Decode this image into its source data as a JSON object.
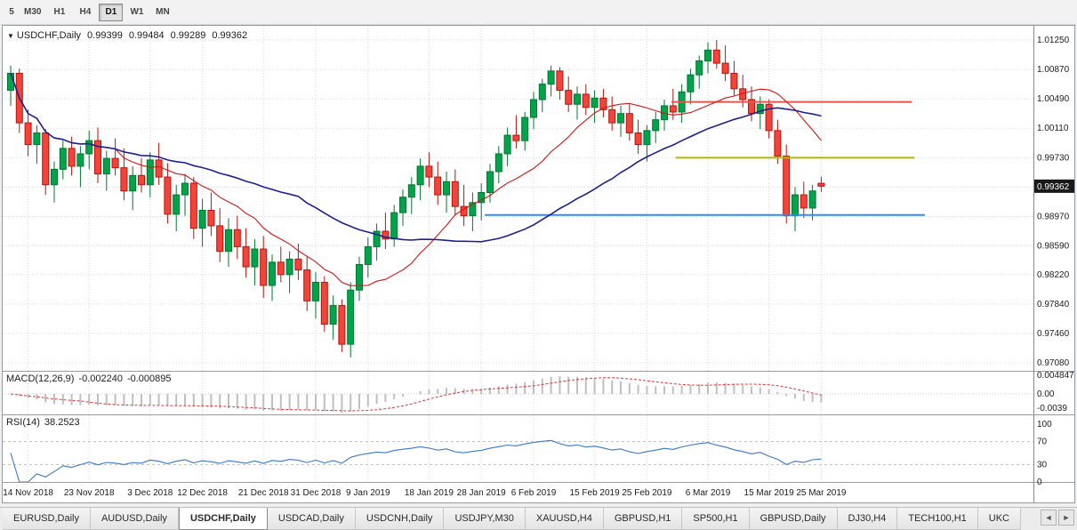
{
  "accent_colors": {
    "up": "#00a44a",
    "up_border": "#00762f",
    "down": "#f5433a",
    "down_border": "#b3150e",
    "ma_fast": "#d01616",
    "ma_slow": "#1c1f8f",
    "hline_red": "#e2574c",
    "hline_yellow": "#b4b800",
    "hline_blue": "#2e8ef0",
    "macd_hist": "#bfbfbf",
    "macd_signal": "#e03131",
    "rsi_line": "#3878c8",
    "price_badge_bg": "#1a1a1a",
    "price_badge_text": "#ffffff"
  },
  "toolbar": {
    "timeframes": [
      {
        "label": "5",
        "active": false,
        "clipped": true
      },
      {
        "label": "M30",
        "active": false
      },
      {
        "label": "H1",
        "active": false
      },
      {
        "label": "H4",
        "active": false
      },
      {
        "label": "D1",
        "active": true
      },
      {
        "label": "W1",
        "active": false
      },
      {
        "label": "MN",
        "active": false
      }
    ]
  },
  "chart_header": {
    "dropdown_icon": "▼",
    "symbol": "USDCHF,Daily",
    "open": "0.99399",
    "high": "0.99484",
    "low": "0.99289",
    "close": "0.99362"
  },
  "price_axis": {
    "labels": [
      "1.01250",
      "1.00870",
      "1.00490",
      "1.00110",
      "0.99730",
      "0.99350",
      "0.98970",
      "0.98590",
      "0.98220",
      "0.97840",
      "0.97460",
      "0.97080"
    ],
    "badge": "0.99362"
  },
  "macd_panel": {
    "label": "MACD(12,26,9)",
    "value_main": "-0.002240",
    "value_signal": "-0.000895",
    "axis": [
      "0.004847",
      "0.00",
      "-0.0039"
    ]
  },
  "rsi_panel": {
    "label": "RSI(14)",
    "value": "38.2523",
    "axis": [
      "100",
      "70",
      "30",
      "0"
    ]
  },
  "tabs": {
    "items": [
      "EURUSD,Daily",
      "AUDUSD,Daily",
      "USDCHF,Daily",
      "USDCAD,Daily",
      "USDCNH,Daily",
      "USDJPY,M30",
      "XAUUSD,H4",
      "GBPUSD,H1",
      "SP500,H1",
      "GBPUSD,Daily",
      "DJ30,H4",
      "TECH100,H1",
      "UKC"
    ],
    "active_index": 2,
    "last_clipped": true,
    "scroll_left": "◄",
    "scroll_right": "►"
  },
  "chart_data": {
    "type": "candlestick",
    "title": "USDCHF,Daily",
    "symbol": "USDCHF",
    "timeframe": "D1",
    "ohlc_last": {
      "open": 0.99399,
      "high": 0.99484,
      "low": 0.99289,
      "close": 0.99362
    },
    "y_gridlines": [
      1.0125,
      1.0087,
      1.0049,
      1.0011,
      0.9973,
      0.9935,
      0.9897,
      0.9859,
      0.9822,
      0.9784,
      0.9746,
      0.9708
    ],
    "ylim": [
      0.9695,
      1.0143
    ],
    "candles": [
      [
        1.006,
        1.0092,
        1.004,
        1.0082
      ],
      [
        1.0082,
        1.0088,
        1.0005,
        1.0018
      ],
      [
        1.0018,
        1.0035,
        0.9975,
        0.999
      ],
      [
        0.999,
        1.0015,
        0.9965,
        1.0005
      ],
      [
        1.0005,
        1.001,
        0.9925,
        0.9938
      ],
      [
        0.9938,
        0.9968,
        0.9915,
        0.9958
      ],
      [
        0.9958,
        0.9995,
        0.9945,
        0.9985
      ],
      [
        0.9985,
        1.0,
        0.995,
        0.9962
      ],
      [
        0.9962,
        0.9988,
        0.9935,
        0.9978
      ],
      [
        0.9978,
        1.0008,
        0.9958,
        0.9995
      ],
      [
        0.9995,
        1.0012,
        0.994,
        0.9952
      ],
      [
        0.9952,
        0.9982,
        0.993,
        0.9972
      ],
      [
        0.9972,
        0.9998,
        0.995,
        0.996
      ],
      [
        0.996,
        0.9985,
        0.9918,
        0.993
      ],
      [
        0.993,
        0.9962,
        0.9905,
        0.995
      ],
      [
        0.995,
        0.9972,
        0.9928,
        0.9938
      ],
      [
        0.9938,
        0.998,
        0.9922,
        0.997
      ],
      [
        0.997,
        0.9992,
        0.9938,
        0.9948
      ],
      [
        0.9948,
        0.9966,
        0.9888,
        0.99
      ],
      [
        0.99,
        0.9938,
        0.9878,
        0.9925
      ],
      [
        0.9925,
        0.9952,
        0.9898,
        0.994
      ],
      [
        0.994,
        0.9948,
        0.9868,
        0.9882
      ],
      [
        0.9882,
        0.992,
        0.9858,
        0.9905
      ],
      [
        0.9905,
        0.9928,
        0.9872,
        0.9885
      ],
      [
        0.9885,
        0.9908,
        0.9838,
        0.9852
      ],
      [
        0.9852,
        0.9895,
        0.9832,
        0.988
      ],
      [
        0.988,
        0.9898,
        0.9842,
        0.9858
      ],
      [
        0.9858,
        0.9882,
        0.9818,
        0.9832
      ],
      [
        0.9832,
        0.9868,
        0.9808,
        0.9855
      ],
      [
        0.9855,
        0.9872,
        0.9792,
        0.9808
      ],
      [
        0.9808,
        0.9848,
        0.9788,
        0.9838
      ],
      [
        0.9838,
        0.9858,
        0.9812,
        0.9822
      ],
      [
        0.9822,
        0.9852,
        0.9798,
        0.9842
      ],
      [
        0.9842,
        0.9862,
        0.9815,
        0.9828
      ],
      [
        0.9828,
        0.9845,
        0.9775,
        0.9788
      ],
      [
        0.9788,
        0.9825,
        0.9765,
        0.9812
      ],
      [
        0.9812,
        0.982,
        0.9748,
        0.9758
      ],
      [
        0.9758,
        0.9795,
        0.9738,
        0.9782
      ],
      [
        0.9782,
        0.979,
        0.9722,
        0.9732
      ],
      [
        0.9732,
        0.9812,
        0.9715,
        0.9802
      ],
      [
        0.9802,
        0.9845,
        0.9788,
        0.9835
      ],
      [
        0.9835,
        0.987,
        0.9818,
        0.9858
      ],
      [
        0.9858,
        0.9888,
        0.984,
        0.9878
      ],
      [
        0.9878,
        0.9902,
        0.9855,
        0.9868
      ],
      [
        0.9868,
        0.9912,
        0.9858,
        0.9902
      ],
      [
        0.9902,
        0.9932,
        0.9885,
        0.9922
      ],
      [
        0.9922,
        0.9948,
        0.99,
        0.9938
      ],
      [
        0.9938,
        0.9972,
        0.9918,
        0.9962
      ],
      [
        0.9962,
        0.998,
        0.9935,
        0.9948
      ],
      [
        0.9948,
        0.9968,
        0.9912,
        0.9925
      ],
      [
        0.9925,
        0.9955,
        0.9902,
        0.9942
      ],
      [
        0.9942,
        0.9958,
        0.9898,
        0.991
      ],
      [
        0.991,
        0.9938,
        0.9885,
        0.9898
      ],
      [
        0.9898,
        0.9928,
        0.9878,
        0.9915
      ],
      [
        0.9915,
        0.994,
        0.9892,
        0.9928
      ],
      [
        0.9928,
        0.9965,
        0.9915,
        0.9955
      ],
      [
        0.9955,
        0.9988,
        0.994,
        0.9978
      ],
      [
        0.9978,
        1.0012,
        0.9962,
        1.0002
      ],
      [
        1.0002,
        1.0028,
        0.9985,
        0.9995
      ],
      [
        0.9995,
        1.0032,
        0.9982,
        1.0025
      ],
      [
        1.0025,
        1.0058,
        1.001,
        1.0048
      ],
      [
        1.0048,
        1.0075,
        1.0032,
        1.0068
      ],
      [
        1.0068,
        1.0092,
        1.0052,
        1.0085
      ],
      [
        1.0085,
        1.009,
        1.0048,
        1.006
      ],
      [
        1.006,
        1.0078,
        1.0032,
        1.0042
      ],
      [
        1.0042,
        1.0065,
        1.0022,
        1.0055
      ],
      [
        1.0055,
        1.0068,
        1.0028,
        1.0038
      ],
      [
        1.0038,
        1.006,
        1.0018,
        1.005
      ],
      [
        1.005,
        1.0062,
        1.0025,
        1.0035
      ],
      [
        1.0035,
        1.0052,
        1.0008,
        1.0018
      ],
      [
        1.0018,
        1.004,
        1.0,
        1.003
      ],
      [
        1.003,
        1.0042,
        0.9995,
        1.0005
      ],
      [
        1.0005,
        1.0022,
        0.9978,
        0.999
      ],
      [
        0.999,
        1.0015,
        0.9968,
        1.0008
      ],
      [
        1.0008,
        1.0032,
        0.9992,
        1.0022
      ],
      [
        1.0022,
        1.0048,
        1.0008,
        1.004
      ],
      [
        1.004,
        1.0062,
        1.0022,
        1.0032
      ],
      [
        1.0032,
        1.0068,
        1.0018,
        1.0058
      ],
      [
        1.0058,
        1.0088,
        1.0042,
        1.008
      ],
      [
        1.008,
        1.0105,
        1.0062,
        1.0098
      ],
      [
        1.0098,
        1.0122,
        1.0082,
        1.0112
      ],
      [
        1.0112,
        1.0125,
        1.0088,
        1.0095
      ],
      [
        1.0095,
        1.0118,
        1.0072,
        1.0082
      ],
      [
        1.0082,
        1.0098,
        1.0052,
        1.0062
      ],
      [
        1.0062,
        1.008,
        1.0038,
        1.0048
      ],
      [
        1.0048,
        1.0065,
        1.002,
        1.003
      ],
      [
        1.003,
        1.0052,
        1.001,
        1.0042
      ],
      [
        1.0042,
        1.0048,
        0.9998,
        1.0008
      ],
      [
        1.0008,
        1.0022,
        0.9965,
        0.9975
      ],
      [
        0.9975,
        0.999,
        0.9888,
        0.9898
      ],
      [
        0.9898,
        0.9935,
        0.9878,
        0.9925
      ],
      [
        0.9925,
        0.9942,
        0.9895,
        0.9908
      ],
      [
        0.9908,
        0.9938,
        0.9892,
        0.993
      ],
      [
        0.99399,
        0.99484,
        0.99289,
        0.99362
      ]
    ],
    "date_ticks": [
      {
        "i": 2,
        "label": "14 Nov 2018"
      },
      {
        "i": 9,
        "label": "23 Nov 2018"
      },
      {
        "i": 16,
        "label": "3 Dec 2018"
      },
      {
        "i": 22,
        "label": "12 Dec 2018"
      },
      {
        "i": 29,
        "label": "21 Dec 2018"
      },
      {
        "i": 35,
        "label": "31 Dec 2018"
      },
      {
        "i": 41,
        "label": "9 Jan 2019"
      },
      {
        "i": 48,
        "label": "18 Jan 2019"
      },
      {
        "i": 54,
        "label": "28 Jan 2019"
      },
      {
        "i": 60,
        "label": "6 Feb 2019"
      },
      {
        "i": 67,
        "label": "15 Feb 2019"
      },
      {
        "i": 73,
        "label": "25 Feb 2019"
      },
      {
        "i": 80,
        "label": "6 Mar 2019"
      },
      {
        "i": 87,
        "label": "15 Mar 2019"
      },
      {
        "i": 93,
        "label": "25 Mar 2019"
      }
    ],
    "hlines": [
      {
        "name": "resistance-line-red",
        "price": 1.0045,
        "i1": 75.8,
        "i2": 103.4,
        "color_key": "hline_red"
      },
      {
        "name": "resistance-line-yellow",
        "price": 0.9973,
        "i1": 76.3,
        "i2": 103.7,
        "color_key": "hline_yellow"
      },
      {
        "name": "support-line-blue",
        "price": 0.9899,
        "i1": 54.4,
        "i2": 104.9,
        "color_key": "hline_blue"
      }
    ],
    "moving_averages": [
      {
        "period": 13,
        "color_key": "ma_fast",
        "width": 1.1
      },
      {
        "period": 34,
        "color_key": "ma_slow",
        "width": 1.6
      }
    ],
    "macd": {
      "fast": 12,
      "slow": 26,
      "signal": 9,
      "last_main": -0.00224,
      "last_signal": -0.000895
    },
    "rsi": {
      "period": 14,
      "levels": [
        70,
        30
      ],
      "last": 38.2523
    }
  }
}
